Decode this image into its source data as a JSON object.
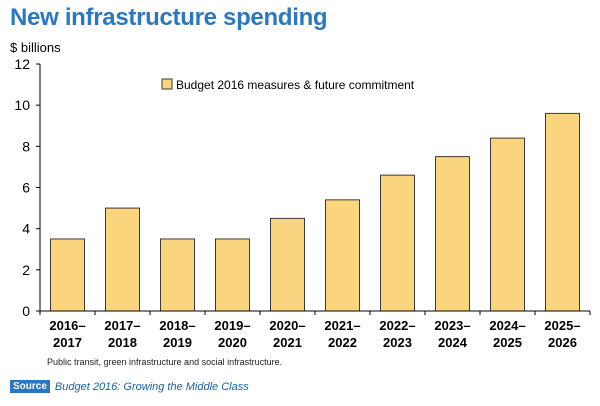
{
  "title": "New infrastructure spending",
  "unit_label": "$ billions",
  "footnote": "Public transit, green infrastructure and social infrastructure.",
  "source": {
    "badge": "Source",
    "text": "Budget 2016: Growing the Middle Class"
  },
  "colors": {
    "title": "#2a78c2",
    "bar_fill": "#fbd47e",
    "bar_stroke": "#3a3a3a"
  },
  "chart_data": {
    "type": "bar",
    "categories": [
      [
        "2016–",
        "2017"
      ],
      [
        "2017–",
        "2018"
      ],
      [
        "2018–",
        "2019"
      ],
      [
        "2019–",
        "2020"
      ],
      [
        "2020–",
        "2021"
      ],
      [
        "2021–",
        "2022"
      ],
      [
        "2022–",
        "2023"
      ],
      [
        "2023–",
        "2024"
      ],
      [
        "2024–",
        "2025"
      ],
      [
        "2025–",
        "2026"
      ]
    ],
    "series": [
      {
        "name": "Budget 2016 measures & future commitment",
        "values": [
          3.5,
          5.0,
          3.5,
          3.5,
          4.5,
          5.4,
          6.6,
          7.5,
          8.4,
          9.6
        ]
      }
    ],
    "ylim": [
      0,
      12
    ],
    "yticks": [
      0,
      2,
      4,
      6,
      8,
      10,
      12
    ],
    "grid": false,
    "legend_position": "top-center"
  }
}
